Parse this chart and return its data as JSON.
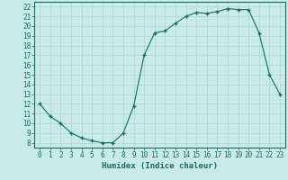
{
  "x": [
    0,
    1,
    2,
    3,
    4,
    5,
    6,
    7,
    8,
    9,
    10,
    11,
    12,
    13,
    14,
    15,
    16,
    17,
    18,
    19,
    20,
    21,
    22,
    23
  ],
  "y": [
    12,
    10.7,
    10,
    9,
    8.5,
    8.2,
    8,
    8,
    9,
    11.8,
    17,
    19.3,
    19.5,
    20.3,
    21,
    21.4,
    21.3,
    21.5,
    21.8,
    21.7,
    21.7,
    19.3,
    15,
    13
  ],
  "line_color": "#1a6b5a",
  "marker_color": "#1a6b5a",
  "bg_color": "#c8ebe8",
  "grid_color": "#b0d4d0",
  "xlabel": "Humidex (Indice chaleur)",
  "xlim": [
    -0.5,
    23.5
  ],
  "ylim": [
    7.5,
    22.5
  ],
  "xticks": [
    0,
    1,
    2,
    3,
    4,
    5,
    6,
    7,
    8,
    9,
    10,
    11,
    12,
    13,
    14,
    15,
    16,
    17,
    18,
    19,
    20,
    21,
    22,
    23
  ],
  "yticks": [
    8,
    9,
    10,
    11,
    12,
    13,
    14,
    15,
    16,
    17,
    18,
    19,
    20,
    21,
    22
  ],
  "xlabel_fontsize": 6.5,
  "tick_fontsize": 5.5
}
